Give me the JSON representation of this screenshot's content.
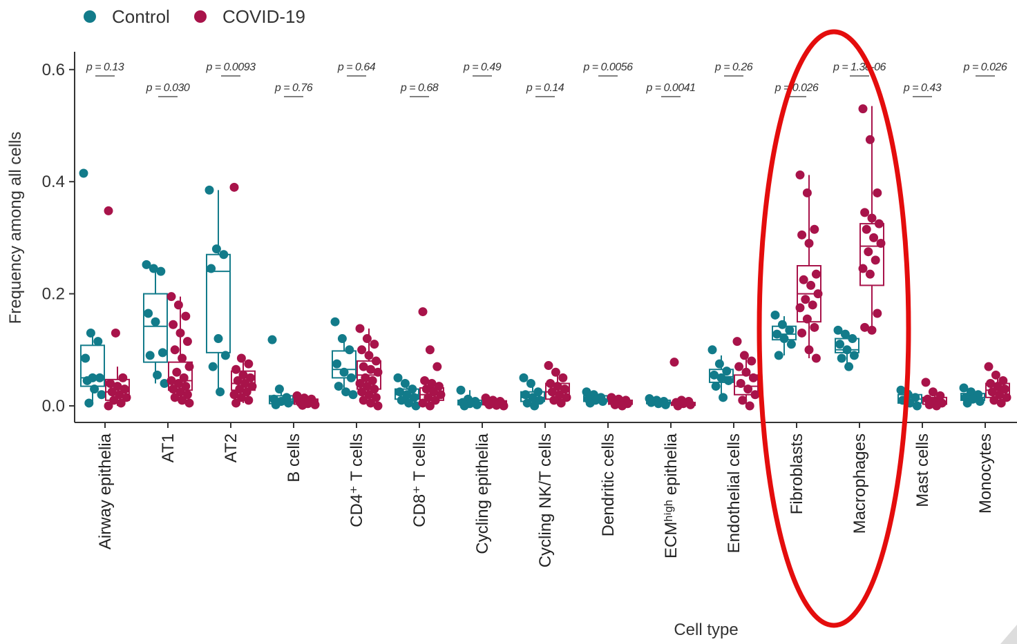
{
  "chart_data": {
    "type": "box",
    "xlabel": "Cell type",
    "ylabel": "Frequency among all cells",
    "ylim": [
      0,
      0.62
    ],
    "yticks": [
      "0.0",
      "0.2",
      "0.4",
      "0.6"
    ],
    "grid": false,
    "legend_position": "top-left",
    "annotation": "red ellipse highlighting Fibroblasts and Macrophages",
    "series": [
      {
        "name": "Control",
        "color": "#127b8a"
      },
      {
        "name": "COVID-19",
        "color": "#a8134a"
      }
    ],
    "categories": [
      "Airway epithelia",
      "AT1",
      "AT2",
      "B cells",
      "CD4⁺ T cells",
      "CD8⁺ T cells",
      "Cycling epithelia",
      "Cycling NK/T cells",
      "Dendritic cells",
      "ECMʰⁱᵍʰ epithelia",
      "Endothelial cells",
      "Fibroblasts",
      "Macrophages",
      "Mast cells",
      "Monocytes"
    ],
    "p_values": [
      "p = 0.13",
      "p = 0.030",
      "p = 0.0093",
      "p = 0.76",
      "p = 0.64",
      "p = 0.68",
      "p = 0.49",
      "p = 0.14",
      "p = 0.0056",
      "p = 0.0041",
      "p = 0.26",
      "p = 0.026",
      "p = 1.3e-06",
      "p = 0.43",
      "p = 0.026"
    ],
    "boxes": [
      {
        "control": {
          "q1": 0.035,
          "median": 0.05,
          "q3": 0.108,
          "lo": 0.005,
          "hi": 0.13,
          "points": [
            0.415,
            0.13,
            0.115,
            0.085,
            0.05,
            0.05,
            0.045,
            0.03,
            0.02,
            0.005
          ]
        },
        "covid": {
          "q1": 0.01,
          "median": 0.025,
          "q3": 0.047,
          "lo": 0.0,
          "hi": 0.07,
          "points": [
            0.348,
            0.13,
            0.05,
            0.04,
            0.035,
            0.03,
            0.025,
            0.02,
            0.015,
            0.01,
            0.005,
            0.0
          ]
        }
      },
      {
        "control": {
          "q1": 0.078,
          "median": 0.142,
          "q3": 0.2,
          "lo": 0.04,
          "hi": 0.245,
          "points": [
            0.252,
            0.245,
            0.24,
            0.165,
            0.15,
            0.095,
            0.09,
            0.055,
            0.04
          ]
        },
        "covid": {
          "q1": 0.028,
          "median": 0.045,
          "q3": 0.078,
          "lo": 0.005,
          "hi": 0.195,
          "points": [
            0.195,
            0.18,
            0.16,
            0.145,
            0.13,
            0.115,
            0.1,
            0.085,
            0.07,
            0.06,
            0.05,
            0.045,
            0.04,
            0.035,
            0.03,
            0.025,
            0.02,
            0.015,
            0.01,
            0.005
          ]
        }
      },
      {
        "control": {
          "q1": 0.095,
          "median": 0.24,
          "q3": 0.27,
          "lo": 0.025,
          "hi": 0.385,
          "points": [
            0.385,
            0.28,
            0.27,
            0.245,
            0.12,
            0.09,
            0.07,
            0.025
          ]
        },
        "covid": {
          "q1": 0.028,
          "median": 0.04,
          "q3": 0.062,
          "lo": 0.005,
          "hi": 0.085,
          "points": [
            0.39,
            0.085,
            0.075,
            0.065,
            0.055,
            0.05,
            0.045,
            0.04,
            0.035,
            0.03,
            0.025,
            0.02,
            0.015,
            0.01,
            0.005
          ]
        }
      },
      {
        "control": {
          "q1": 0.004,
          "median": 0.012,
          "q3": 0.018,
          "lo": 0.0,
          "hi": 0.03,
          "points": [
            0.118,
            0.03,
            0.015,
            0.012,
            0.008,
            0.005,
            0.002
          ]
        },
        "covid": {
          "q1": 0.003,
          "median": 0.007,
          "q3": 0.012,
          "lo": 0.0,
          "hi": 0.018,
          "points": [
            0.018,
            0.014,
            0.012,
            0.01,
            0.008,
            0.006,
            0.005,
            0.004,
            0.002,
            0.001
          ]
        }
      },
      {
        "control": {
          "q1": 0.05,
          "median": 0.065,
          "q3": 0.098,
          "lo": 0.02,
          "hi": 0.12,
          "points": [
            0.15,
            0.12,
            0.1,
            0.075,
            0.06,
            0.05,
            0.035,
            0.025,
            0.02
          ]
        },
        "covid": {
          "q1": 0.03,
          "median": 0.055,
          "q3": 0.08,
          "lo": 0.0,
          "hi": 0.138,
          "points": [
            0.138,
            0.12,
            0.11,
            0.1,
            0.09,
            0.08,
            0.07,
            0.065,
            0.06,
            0.05,
            0.045,
            0.04,
            0.035,
            0.03,
            0.025,
            0.02,
            0.015,
            0.01,
            0.005,
            0.0
          ]
        }
      },
      {
        "control": {
          "q1": 0.012,
          "median": 0.02,
          "q3": 0.03,
          "lo": 0.0,
          "hi": 0.045,
          "points": [
            0.05,
            0.04,
            0.03,
            0.025,
            0.02,
            0.015,
            0.01,
            0.005,
            0.0
          ]
        },
        "covid": {
          "q1": 0.01,
          "median": 0.02,
          "q3": 0.032,
          "lo": 0.0,
          "hi": 0.045,
          "points": [
            0.168,
            0.1,
            0.07,
            0.045,
            0.04,
            0.035,
            0.03,
            0.025,
            0.02,
            0.015,
            0.01,
            0.005,
            0.0
          ]
        }
      },
      {
        "control": {
          "q1": 0.002,
          "median": 0.006,
          "q3": 0.01,
          "lo": 0.0,
          "hi": 0.028,
          "points": [
            0.028,
            0.012,
            0.008,
            0.006,
            0.004,
            0.002,
            0.0
          ]
        },
        "covid": {
          "q1": 0.002,
          "median": 0.005,
          "q3": 0.009,
          "lo": 0.0,
          "hi": 0.014,
          "points": [
            0.014,
            0.01,
            0.008,
            0.006,
            0.005,
            0.004,
            0.002,
            0.001,
            0.0
          ]
        }
      },
      {
        "control": {
          "q1": 0.008,
          "median": 0.015,
          "q3": 0.025,
          "lo": 0.0,
          "hi": 0.045,
          "points": [
            0.05,
            0.04,
            0.025,
            0.02,
            0.015,
            0.01,
            0.005,
            0.0
          ]
        },
        "covid": {
          "q1": 0.012,
          "median": 0.025,
          "q3": 0.04,
          "lo": 0.005,
          "hi": 0.06,
          "points": [
            0.072,
            0.06,
            0.05,
            0.04,
            0.035,
            0.03,
            0.025,
            0.02,
            0.015,
            0.01,
            0.005
          ]
        }
      },
      {
        "control": {
          "q1": 0.008,
          "median": 0.012,
          "q3": 0.018,
          "lo": 0.004,
          "hi": 0.025,
          "points": [
            0.025,
            0.02,
            0.015,
            0.012,
            0.01,
            0.008,
            0.005
          ]
        },
        "covid": {
          "q1": 0.003,
          "median": 0.006,
          "q3": 0.01,
          "lo": 0.0,
          "hi": 0.015,
          "points": [
            0.015,
            0.012,
            0.01,
            0.008,
            0.006,
            0.004,
            0.002,
            0.0
          ]
        }
      },
      {
        "control": {
          "q1": 0.004,
          "median": 0.007,
          "q3": 0.01,
          "lo": 0.002,
          "hi": 0.013,
          "points": [
            0.013,
            0.01,
            0.008,
            0.006,
            0.004,
            0.002
          ]
        },
        "covid": {
          "q1": 0.001,
          "median": 0.003,
          "q3": 0.006,
          "lo": 0.0,
          "hi": 0.01,
          "points": [
            0.078,
            0.01,
            0.008,
            0.006,
            0.004,
            0.002,
            0.0
          ]
        }
      },
      {
        "control": {
          "q1": 0.042,
          "median": 0.052,
          "q3": 0.065,
          "lo": 0.015,
          "hi": 0.09,
          "points": [
            0.1,
            0.075,
            0.062,
            0.055,
            0.05,
            0.045,
            0.035,
            0.015
          ]
        },
        "covid": {
          "q1": 0.02,
          "median": 0.035,
          "q3": 0.055,
          "lo": 0.0,
          "hi": 0.09,
          "points": [
            0.115,
            0.09,
            0.08,
            0.07,
            0.06,
            0.05,
            0.04,
            0.03,
            0.02,
            0.01,
            0.0
          ]
        }
      },
      {
        "control": {
          "q1": 0.118,
          "median": 0.128,
          "q3": 0.142,
          "lo": 0.09,
          "hi": 0.16,
          "points": [
            0.162,
            0.145,
            0.135,
            0.128,
            0.12,
            0.11,
            0.09
          ]
        },
        "covid": {
          "q1": 0.15,
          "median": 0.2,
          "q3": 0.25,
          "lo": 0.085,
          "hi": 0.412,
          "points": [
            0.412,
            0.38,
            0.315,
            0.305,
            0.29,
            0.235,
            0.225,
            0.215,
            0.2,
            0.19,
            0.18,
            0.175,
            0.155,
            0.14,
            0.13,
            0.1,
            0.085
          ]
        }
      },
      {
        "control": {
          "q1": 0.095,
          "median": 0.1,
          "q3": 0.12,
          "lo": 0.07,
          "hi": 0.135,
          "points": [
            0.135,
            0.128,
            0.12,
            0.11,
            0.1,
            0.09,
            0.085,
            0.07
          ]
        },
        "covid": {
          "q1": 0.215,
          "median": 0.285,
          "q3": 0.325,
          "lo": 0.135,
          "hi": 0.535,
          "points": [
            0.53,
            0.475,
            0.38,
            0.345,
            0.335,
            0.325,
            0.315,
            0.3,
            0.29,
            0.275,
            0.26,
            0.245,
            0.235,
            0.165,
            0.14,
            0.135
          ]
        }
      },
      {
        "control": {
          "q1": 0.005,
          "median": 0.012,
          "q3": 0.02,
          "lo": 0.0,
          "hi": 0.028,
          "points": [
            0.028,
            0.02,
            0.015,
            0.01,
            0.005,
            0.0
          ]
        },
        "covid": {
          "q1": 0.003,
          "median": 0.008,
          "q3": 0.015,
          "lo": 0.0,
          "hi": 0.03,
          "points": [
            0.042,
            0.025,
            0.018,
            0.012,
            0.008,
            0.005,
            0.002,
            0.0
          ]
        }
      },
      {
        "control": {
          "q1": 0.01,
          "median": 0.015,
          "q3": 0.022,
          "lo": 0.005,
          "hi": 0.032,
          "points": [
            0.032,
            0.025,
            0.02,
            0.015,
            0.012,
            0.008,
            0.005
          ]
        },
        "covid": {
          "q1": 0.015,
          "median": 0.028,
          "q3": 0.04,
          "lo": 0.005,
          "hi": 0.055,
          "points": [
            0.07,
            0.055,
            0.045,
            0.04,
            0.035,
            0.03,
            0.025,
            0.02,
            0.015,
            0.01,
            0.005
          ]
        }
      }
    ]
  }
}
